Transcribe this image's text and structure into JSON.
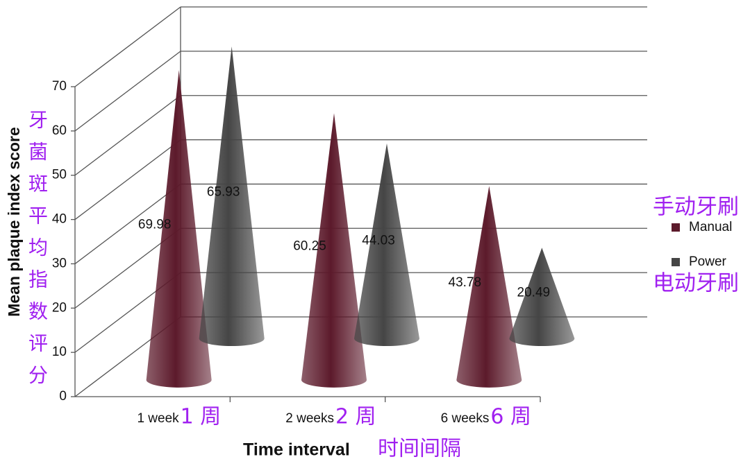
{
  "chart_data": {
    "type": "cone",
    "y_label": "Mean plaque index score",
    "y_label_annotation": "牙菌斑平均指数评分",
    "x_label": "Time interval",
    "x_label_annotation": "时间间隔",
    "categories": [
      "1 week",
      "2 weeks",
      "6 weeks"
    ],
    "category_annotations": [
      "1 周",
      "2 周",
      "6 周"
    ],
    "series": [
      {
        "name": "Manual",
        "annotation": "手动牙刷",
        "color": "#5c1a2b",
        "values": [
          69.98,
          60.25,
          43.78
        ]
      },
      {
        "name": "Power",
        "annotation": "电动牙刷",
        "color": "#454545",
        "values": [
          65.93,
          44.03,
          20.49
        ]
      }
    ],
    "ylim": [
      0,
      70
    ],
    "yticks": [
      0,
      10,
      20,
      30,
      40,
      50,
      60,
      70
    ],
    "grid": true
  }
}
